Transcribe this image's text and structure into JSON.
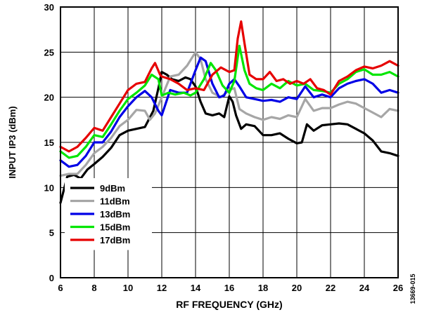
{
  "chart_data": {
    "type": "line",
    "xlabel": "RF FREQUENCY (GHz)",
    "ylabel": "INPUT IP3 (dBm)",
    "xlim": [
      6,
      26
    ],
    "ylim": [
      0,
      30
    ],
    "xticks": [
      6,
      8,
      10,
      12,
      14,
      16,
      18,
      20,
      22,
      24,
      26
    ],
    "yticks": [
      0,
      5,
      10,
      15,
      20,
      25,
      30
    ],
    "grid": true,
    "legend_position": "bottom-left",
    "figure_id": "13669-015",
    "series": [
      {
        "name": "9dBm",
        "color": "#000000",
        "points": [
          [
            6,
            8.3
          ],
          [
            6.4,
            11.2
          ],
          [
            6.8,
            11.4
          ],
          [
            7.2,
            11.0
          ],
          [
            7.6,
            12.0
          ],
          [
            8,
            12.6
          ],
          [
            8.5,
            13.4
          ],
          [
            9,
            14.4
          ],
          [
            9.5,
            15.8
          ],
          [
            10,
            16.3
          ],
          [
            10.5,
            16.5
          ],
          [
            11,
            16.7
          ],
          [
            11.5,
            18.5
          ],
          [
            11.8,
            21.0
          ],
          [
            12,
            22.8
          ],
          [
            12.3,
            22.5
          ],
          [
            12.6,
            22.0
          ],
          [
            13,
            21.8
          ],
          [
            13.4,
            22.2
          ],
          [
            13.7,
            22.0
          ],
          [
            14,
            21.2
          ],
          [
            14.3,
            19.5
          ],
          [
            14.6,
            18.2
          ],
          [
            15,
            18.0
          ],
          [
            15.4,
            18.2
          ],
          [
            15.7,
            17.8
          ],
          [
            16,
            20.1
          ],
          [
            16.2,
            19.5
          ],
          [
            16.4,
            18.0
          ],
          [
            16.7,
            16.5
          ],
          [
            17,
            17.0
          ],
          [
            17.5,
            16.8
          ],
          [
            18,
            15.8
          ],
          [
            18.5,
            15.8
          ],
          [
            19,
            16.0
          ],
          [
            19.5,
            15.4
          ],
          [
            20,
            14.9
          ],
          [
            20.3,
            15.0
          ],
          [
            20.6,
            17.0
          ],
          [
            21,
            16.3
          ],
          [
            21.5,
            16.9
          ],
          [
            22,
            17.0
          ],
          [
            22.5,
            17.1
          ],
          [
            23,
            17.0
          ],
          [
            23.5,
            16.5
          ],
          [
            24,
            16.0
          ],
          [
            24.5,
            15.2
          ],
          [
            25,
            14.0
          ],
          [
            25.5,
            13.8
          ],
          [
            26,
            13.5
          ]
        ]
      },
      {
        "name": "11dBm",
        "color": "#a6a6a6",
        "points": [
          [
            6,
            11.3
          ],
          [
            6.5,
            11.5
          ],
          [
            7,
            11.5
          ],
          [
            7.5,
            12.5
          ],
          [
            8,
            13.8
          ],
          [
            8.5,
            14.5
          ],
          [
            9,
            15.5
          ],
          [
            9.5,
            16.8
          ],
          [
            10,
            17.5
          ],
          [
            10.5,
            18.6
          ],
          [
            11,
            18.5
          ],
          [
            11.3,
            17.5
          ],
          [
            11.6,
            18.2
          ],
          [
            12,
            20.0
          ],
          [
            12.5,
            22.3
          ],
          [
            13,
            22.5
          ],
          [
            13.5,
            23.5
          ],
          [
            14,
            25.0
          ],
          [
            14.3,
            24.2
          ],
          [
            14.6,
            22.0
          ],
          [
            15,
            20.5
          ],
          [
            15.5,
            20.0
          ],
          [
            16,
            20.8
          ],
          [
            16.3,
            21.0
          ],
          [
            16.6,
            18.7
          ],
          [
            17,
            18.2
          ],
          [
            17.5,
            17.8
          ],
          [
            18,
            17.5
          ],
          [
            18.5,
            17.8
          ],
          [
            19,
            17.6
          ],
          [
            19.5,
            18.0
          ],
          [
            20,
            17.8
          ],
          [
            20.5,
            19.8
          ],
          [
            21,
            18.5
          ],
          [
            21.5,
            18.8
          ],
          [
            22,
            18.8
          ],
          [
            22.5,
            19.2
          ],
          [
            23,
            19.5
          ],
          [
            23.5,
            19.3
          ],
          [
            24,
            18.8
          ],
          [
            24.5,
            18.3
          ],
          [
            25,
            17.8
          ],
          [
            25.5,
            18.7
          ],
          [
            26,
            18.5
          ]
        ]
      },
      {
        "name": "13dBm",
        "color": "#0000e6",
        "points": [
          [
            6,
            13.0
          ],
          [
            6.5,
            12.3
          ],
          [
            7,
            12.5
          ],
          [
            7.5,
            13.5
          ],
          [
            8,
            15.0
          ],
          [
            8.5,
            15.0
          ],
          [
            9,
            16.2
          ],
          [
            9.5,
            17.8
          ],
          [
            10,
            19.0
          ],
          [
            10.5,
            20.0
          ],
          [
            11,
            20.7
          ],
          [
            11.4,
            20.0
          ],
          [
            11.8,
            18.5
          ],
          [
            12,
            18.0
          ],
          [
            12.5,
            20.8
          ],
          [
            13,
            20.5
          ],
          [
            13.5,
            20.5
          ],
          [
            14,
            23.0
          ],
          [
            14.3,
            24.4
          ],
          [
            14.6,
            24.0
          ],
          [
            15,
            21.5
          ],
          [
            15.4,
            20.0
          ],
          [
            15.7,
            20.2
          ],
          [
            16,
            21.5
          ],
          [
            16.3,
            22.0
          ],
          [
            16.6,
            21.2
          ],
          [
            17,
            20.0
          ],
          [
            17.5,
            19.8
          ],
          [
            18,
            19.6
          ],
          [
            18.5,
            19.7
          ],
          [
            19,
            19.5
          ],
          [
            19.5,
            20.0
          ],
          [
            20,
            19.8
          ],
          [
            20.5,
            21.2
          ],
          [
            21,
            20.0
          ],
          [
            21.5,
            20.3
          ],
          [
            22,
            20.0
          ],
          [
            22.5,
            21.0
          ],
          [
            23,
            21.5
          ],
          [
            23.5,
            21.8
          ],
          [
            24,
            22.0
          ],
          [
            24.5,
            21.5
          ],
          [
            25,
            20.5
          ],
          [
            25.5,
            20.8
          ],
          [
            26,
            20.5
          ]
        ]
      },
      {
        "name": "15dBm",
        "color": "#00e600",
        "points": [
          [
            6,
            14.0
          ],
          [
            6.5,
            13.3
          ],
          [
            7,
            13.5
          ],
          [
            7.5,
            14.5
          ],
          [
            8,
            15.8
          ],
          [
            8.5,
            15.6
          ],
          [
            9,
            17.0
          ],
          [
            9.5,
            18.5
          ],
          [
            10,
            19.8
          ],
          [
            10.5,
            20.5
          ],
          [
            11,
            21.3
          ],
          [
            11.4,
            22.5
          ],
          [
            11.8,
            22.0
          ],
          [
            12,
            20.2
          ],
          [
            12.4,
            20.5
          ],
          [
            12.8,
            20.3
          ],
          [
            13.3,
            20.5
          ],
          [
            13.7,
            20.2
          ],
          [
            14,
            20.5
          ],
          [
            14.5,
            22.0
          ],
          [
            14.9,
            23.8
          ],
          [
            15.2,
            23.0
          ],
          [
            15.6,
            21.3
          ],
          [
            16,
            20.5
          ],
          [
            16.3,
            21.8
          ],
          [
            16.6,
            25.7
          ],
          [
            16.9,
            23.0
          ],
          [
            17.2,
            21.5
          ],
          [
            17.6,
            21.0
          ],
          [
            18,
            20.8
          ],
          [
            18.5,
            21.5
          ],
          [
            19,
            21.0
          ],
          [
            19.5,
            21.8
          ],
          [
            20,
            21.3
          ],
          [
            20.5,
            21.5
          ],
          [
            21,
            20.8
          ],
          [
            21.5,
            20.7
          ],
          [
            22,
            20.5
          ],
          [
            22.5,
            21.5
          ],
          [
            23,
            22.0
          ],
          [
            23.5,
            22.8
          ],
          [
            24,
            23.1
          ],
          [
            24.5,
            22.5
          ],
          [
            25,
            22.5
          ],
          [
            25.5,
            22.8
          ],
          [
            26,
            22.3
          ]
        ]
      },
      {
        "name": "17dBm",
        "color": "#e60000",
        "points": [
          [
            6,
            14.5
          ],
          [
            6.5,
            14.0
          ],
          [
            7,
            14.5
          ],
          [
            7.5,
            15.5
          ],
          [
            8,
            16.6
          ],
          [
            8.5,
            16.3
          ],
          [
            9,
            17.8
          ],
          [
            9.5,
            19.3
          ],
          [
            10,
            20.8
          ],
          [
            10.5,
            21.5
          ],
          [
            11,
            21.7
          ],
          [
            11.4,
            23.2
          ],
          [
            11.6,
            23.8
          ],
          [
            11.9,
            22.5
          ],
          [
            12,
            22.3
          ],
          [
            12.5,
            22.0
          ],
          [
            13,
            21.5
          ],
          [
            13.5,
            20.8
          ],
          [
            14,
            21.0
          ],
          [
            14.5,
            20.8
          ],
          [
            15,
            22.5
          ],
          [
            15.5,
            23.3
          ],
          [
            16,
            22.8
          ],
          [
            16.3,
            23.0
          ],
          [
            16.5,
            26.5
          ],
          [
            16.7,
            28.4
          ],
          [
            16.9,
            26.0
          ],
          [
            17.2,
            22.5
          ],
          [
            17.6,
            22.0
          ],
          [
            18,
            22.0
          ],
          [
            18.4,
            22.8
          ],
          [
            18.8,
            21.8
          ],
          [
            19.2,
            22.0
          ],
          [
            19.6,
            21.5
          ],
          [
            20,
            21.8
          ],
          [
            20.4,
            21.5
          ],
          [
            20.8,
            22.0
          ],
          [
            21.2,
            21.0
          ],
          [
            21.6,
            20.8
          ],
          [
            22,
            20.3
          ],
          [
            22.5,
            21.8
          ],
          [
            23,
            22.3
          ],
          [
            23.5,
            23.0
          ],
          [
            24,
            23.4
          ],
          [
            24.5,
            23.2
          ],
          [
            25,
            23.5
          ],
          [
            25.5,
            24.0
          ],
          [
            26,
            23.5
          ]
        ]
      }
    ]
  }
}
